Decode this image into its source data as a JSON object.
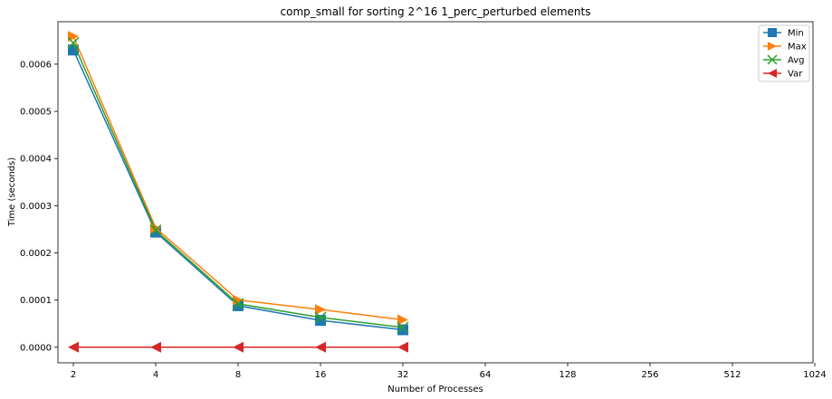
{
  "chart_data": {
    "type": "line",
    "title": "comp_small for sorting 2^16 1_perc_perturbed elements",
    "xlabel": "Number of Processes",
    "ylabel": "Time (seconds)",
    "x_categories": [
      "2",
      "4",
      "8",
      "16",
      "32",
      "64",
      "128",
      "256",
      "512",
      "1024"
    ],
    "x_scale": "log2",
    "ylim": [
      -3.3e-05,
      0.00069
    ],
    "y_ticks": [
      0.0,
      0.0001,
      0.0002,
      0.0003,
      0.0004,
      0.0005,
      0.0006
    ],
    "y_tick_labels": [
      "0.0000",
      "0.0001",
      "0.0002",
      "0.0003",
      "0.0004",
      "0.0005",
      "0.0006"
    ],
    "grid": false,
    "legend_position": "top-right",
    "series": [
      {
        "name": "Min",
        "color": "#1f77b4",
        "marker": "square",
        "x": [
          2,
          4,
          8,
          16,
          32
        ],
        "values": [
          0.00063,
          0.000244,
          8.8e-05,
          5.7e-05,
          3.7e-05
        ]
      },
      {
        "name": "Max",
        "color": "#ff7f0e",
        "marker": "triangle-right",
        "x": [
          2,
          4,
          8,
          16,
          32
        ],
        "values": [
          0.000659,
          0.000253,
          0.0001,
          8e-05,
          5.8e-05
        ]
      },
      {
        "name": "Avg",
        "color": "#2ca02c",
        "marker": "x",
        "x": [
          2,
          4,
          8,
          16,
          32
        ],
        "values": [
          0.000645,
          0.000248,
          9.2e-05,
          6.3e-05,
          4.2e-05
        ]
      },
      {
        "name": "Var",
        "color": "#d62728",
        "marker": "triangle-left",
        "x": [
          2,
          4,
          8,
          16,
          32
        ],
        "values": [
          0.0,
          0.0,
          0.0,
          0.0,
          0.0
        ]
      }
    ]
  }
}
